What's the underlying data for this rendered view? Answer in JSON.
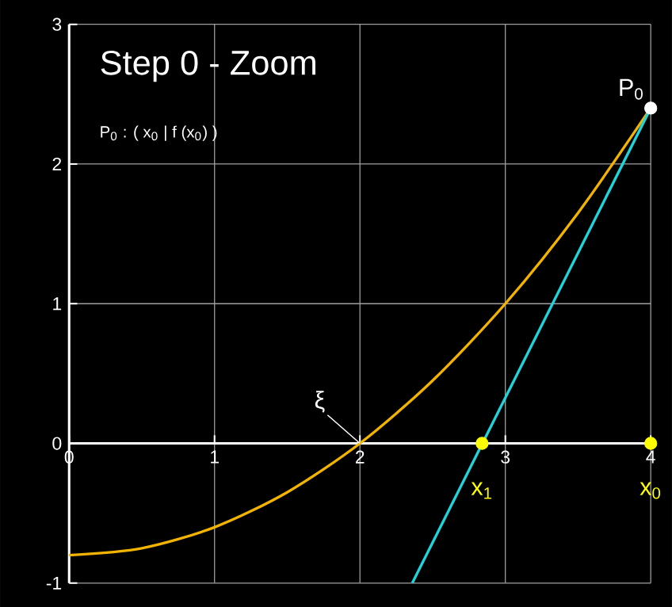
{
  "chart_data": {
    "type": "line",
    "title": "Step 0  -  Zoom",
    "subtitle": "P$_{0}$ : ( x$_{0}$ | f (x$_{0}$) )",
    "series": [
      {
        "color": "#f2b400",
        "x": [
          0,
          0.5,
          1,
          1.5,
          2,
          2.5,
          3,
          3.5,
          4
        ],
        "values": [
          -0.8,
          -0.75,
          -0.6,
          -0.35,
          0,
          0.45,
          1.0,
          1.65,
          2.4
        ]
      },
      {
        "color": "#20d4dc",
        "x": [
          2.36,
          4
        ],
        "values": [
          -1,
          2.4
        ]
      },
      {
        "type": "scatter",
        "color": "#ffffff",
        "marker": "circle",
        "x": [
          4
        ],
        "values": [
          2.4
        ]
      },
      {
        "type": "scatter",
        "color": "#ffff00",
        "marker": "circle",
        "x": [
          2.84,
          4
        ],
        "values": [
          0,
          0
        ]
      }
    ],
    "annotations": [
      {
        "text": "P$_{0}$",
        "x": 4,
        "y": 2.4
      },
      {
        "text": "ξ",
        "x": 2,
        "y": 0
      },
      {
        "text": "x$_{1}$",
        "x": 2.84,
        "y": 0
      },
      {
        "text": "x$_{0}$",
        "x": 4,
        "y": 0
      }
    ],
    "xlim": [
      0,
      4
    ],
    "ylim": [
      -1,
      3
    ],
    "xticks": [
      0,
      1,
      2,
      3,
      4
    ],
    "yticks": [
      -1,
      0,
      1,
      2,
      3
    ],
    "grid": true
  }
}
